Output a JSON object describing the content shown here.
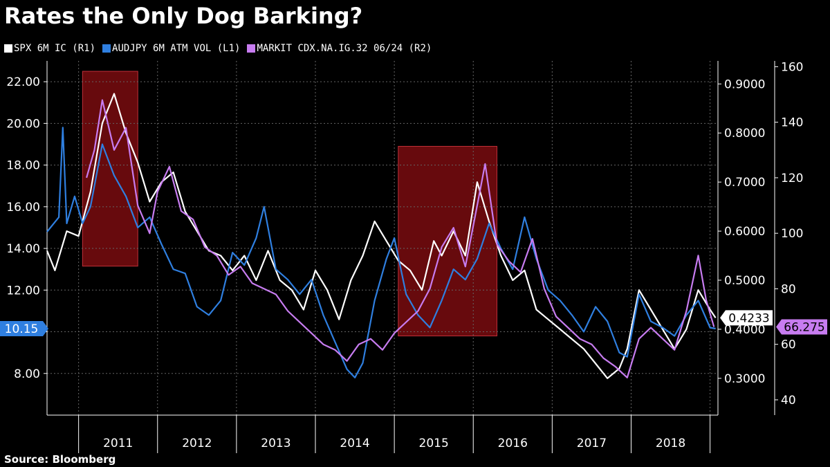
{
  "title": "Rates the Only Dog Barking?",
  "source": "Source:  Bloomberg",
  "colors": {
    "background": "#000000",
    "spx": "#ffffff",
    "audjpy": "#2f7fe0",
    "cdx": "#c77cf0",
    "highlight_fill": "#8a0d12",
    "highlight_stroke": "#c0303a",
    "grid": "#666666"
  },
  "legend": [
    {
      "label": "SPX 6M IC  (R1)",
      "color": "#ffffff"
    },
    {
      "label": "AUDJPY 6M ATM VOL  (L1)",
      "color": "#2f7fe0"
    },
    {
      "label": "MARKIT CDX.NA.IG.32 06/24  (R2)",
      "color": "#c77cf0"
    }
  ],
  "chart_data": {
    "type": "line",
    "title": "Rates the Only Dog Barking?",
    "x_range": [
      2010.6,
      2019.1
    ],
    "x_tick_labels": [
      "2011",
      "2012",
      "2013",
      "2014",
      "2015",
      "2016",
      "2017",
      "2018"
    ],
    "axes": {
      "left": {
        "name": "L1",
        "range": [
          6.0,
          23.0
        ],
        "ticks": [
          "8.00",
          "10.00",
          "12.00",
          "14.00",
          "16.00",
          "18.00",
          "20.00",
          "22.00"
        ]
      },
      "right1": {
        "name": "R1",
        "range": [
          0.225,
          0.947
        ],
        "ticks": [
          "0.3000",
          "0.4000",
          "0.5000",
          "0.6000",
          "0.7000",
          "0.8000",
          "0.9000"
        ]
      },
      "right2": {
        "name": "R2",
        "range": [
          34.5,
          162.1
        ],
        "ticks": [
          "40",
          "60",
          "80",
          "100",
          "120",
          "140",
          "160"
        ]
      }
    },
    "series": [
      {
        "name": "SPX 6M IC",
        "axis": "right1",
        "color": "#ffffff",
        "last_value_label": "0.4233",
        "points": [
          [
            2010.6,
            0.56
          ],
          [
            2010.7,
            0.52
          ],
          [
            2010.85,
            0.6
          ],
          [
            2011.0,
            0.59
          ],
          [
            2011.15,
            0.68
          ],
          [
            2011.3,
            0.82
          ],
          [
            2011.45,
            0.88
          ],
          [
            2011.6,
            0.8
          ],
          [
            2011.75,
            0.74
          ],
          [
            2011.9,
            0.66
          ],
          [
            2012.05,
            0.7
          ],
          [
            2012.2,
            0.72
          ],
          [
            2012.35,
            0.64
          ],
          [
            2012.5,
            0.6
          ],
          [
            2012.65,
            0.56
          ],
          [
            2012.8,
            0.55
          ],
          [
            2012.95,
            0.52
          ],
          [
            2013.1,
            0.55
          ],
          [
            2013.25,
            0.5
          ],
          [
            2013.4,
            0.56
          ],
          [
            2013.55,
            0.5
          ],
          [
            2013.7,
            0.48
          ],
          [
            2013.85,
            0.44
          ],
          [
            2014.0,
            0.52
          ],
          [
            2014.15,
            0.48
          ],
          [
            2014.3,
            0.42
          ],
          [
            2014.45,
            0.5
          ],
          [
            2014.6,
            0.55
          ],
          [
            2014.75,
            0.62
          ],
          [
            2014.9,
            0.58
          ],
          [
            2015.05,
            0.54
          ],
          [
            2015.2,
            0.52
          ],
          [
            2015.35,
            0.48
          ],
          [
            2015.5,
            0.58
          ],
          [
            2015.6,
            0.55
          ],
          [
            2015.75,
            0.6
          ],
          [
            2015.9,
            0.55
          ],
          [
            2016.05,
            0.7
          ],
          [
            2016.2,
            0.62
          ],
          [
            2016.35,
            0.55
          ],
          [
            2016.5,
            0.5
          ],
          [
            2016.65,
            0.52
          ],
          [
            2016.8,
            0.44
          ],
          [
            2016.95,
            0.42
          ],
          [
            2017.1,
            0.4
          ],
          [
            2017.25,
            0.38
          ],
          [
            2017.4,
            0.36
          ],
          [
            2017.55,
            0.33
          ],
          [
            2017.7,
            0.3
          ],
          [
            2017.85,
            0.32
          ],
          [
            2017.95,
            0.36
          ],
          [
            2018.1,
            0.48
          ],
          [
            2018.25,
            0.44
          ],
          [
            2018.4,
            0.4
          ],
          [
            2018.55,
            0.36
          ],
          [
            2018.7,
            0.4
          ],
          [
            2018.85,
            0.48
          ],
          [
            2019.0,
            0.44
          ],
          [
            2019.07,
            0.4233
          ]
        ]
      },
      {
        "name": "AUDJPY 6M ATM VOL",
        "axis": "left",
        "color": "#2f7fe0",
        "last_value_label": "10.15",
        "points": [
          [
            2010.6,
            14.8
          ],
          [
            2010.75,
            15.5
          ],
          [
            2010.8,
            19.8
          ],
          [
            2010.85,
            15.2
          ],
          [
            2010.95,
            16.5
          ],
          [
            2011.05,
            15.2
          ],
          [
            2011.15,
            16.0
          ],
          [
            2011.3,
            19.0
          ],
          [
            2011.45,
            17.5
          ],
          [
            2011.6,
            16.5
          ],
          [
            2011.75,
            15.0
          ],
          [
            2011.9,
            15.5
          ],
          [
            2012.05,
            14.2
          ],
          [
            2012.2,
            13.0
          ],
          [
            2012.35,
            12.8
          ],
          [
            2012.5,
            11.2
          ],
          [
            2012.65,
            10.8
          ],
          [
            2012.8,
            11.5
          ],
          [
            2012.95,
            13.8
          ],
          [
            2013.1,
            13.2
          ],
          [
            2013.25,
            14.5
          ],
          [
            2013.35,
            16.0
          ],
          [
            2013.5,
            13.0
          ],
          [
            2013.65,
            12.5
          ],
          [
            2013.8,
            11.8
          ],
          [
            2013.95,
            12.5
          ],
          [
            2014.1,
            10.8
          ],
          [
            2014.25,
            9.5
          ],
          [
            2014.4,
            8.2
          ],
          [
            2014.5,
            7.8
          ],
          [
            2014.6,
            8.5
          ],
          [
            2014.75,
            11.5
          ],
          [
            2014.9,
            13.5
          ],
          [
            2015.0,
            14.5
          ],
          [
            2015.15,
            11.8
          ],
          [
            2015.3,
            10.8
          ],
          [
            2015.45,
            10.2
          ],
          [
            2015.6,
            11.5
          ],
          [
            2015.75,
            13.0
          ],
          [
            2015.9,
            12.5
          ],
          [
            2016.05,
            13.5
          ],
          [
            2016.2,
            15.2
          ],
          [
            2016.35,
            14.0
          ],
          [
            2016.5,
            13.0
          ],
          [
            2016.65,
            15.5
          ],
          [
            2016.8,
            13.5
          ],
          [
            2016.95,
            12.0
          ],
          [
            2017.1,
            11.5
          ],
          [
            2017.25,
            10.8
          ],
          [
            2017.4,
            10.0
          ],
          [
            2017.55,
            11.2
          ],
          [
            2017.7,
            10.5
          ],
          [
            2017.85,
            9.0
          ],
          [
            2017.95,
            8.8
          ],
          [
            2018.1,
            11.8
          ],
          [
            2018.25,
            10.5
          ],
          [
            2018.4,
            10.2
          ],
          [
            2018.55,
            9.8
          ],
          [
            2018.7,
            10.8
          ],
          [
            2018.85,
            11.5
          ],
          [
            2019.0,
            10.2
          ],
          [
            2019.07,
            10.15
          ]
        ]
      },
      {
        "name": "MARKIT CDX.NA.IG.32 06/24",
        "axis": "right2",
        "color": "#c77cf0",
        "last_value_label": "66.275",
        "points": [
          [
            2011.1,
            120
          ],
          [
            2011.2,
            130
          ],
          [
            2011.3,
            148
          ],
          [
            2011.45,
            130
          ],
          [
            2011.6,
            138
          ],
          [
            2011.75,
            110
          ],
          [
            2011.9,
            100
          ],
          [
            2012.0,
            115
          ],
          [
            2012.15,
            124
          ],
          [
            2012.3,
            108
          ],
          [
            2012.45,
            105
          ],
          [
            2012.6,
            95
          ],
          [
            2012.75,
            92
          ],
          [
            2012.9,
            85
          ],
          [
            2013.05,
            88
          ],
          [
            2013.2,
            82
          ],
          [
            2013.35,
            80
          ],
          [
            2013.5,
            78
          ],
          [
            2013.65,
            72
          ],
          [
            2013.8,
            68
          ],
          [
            2013.95,
            64
          ],
          [
            2014.1,
            60
          ],
          [
            2014.25,
            58
          ],
          [
            2014.4,
            54
          ],
          [
            2014.55,
            60
          ],
          [
            2014.7,
            62
          ],
          [
            2014.85,
            58
          ],
          [
            2015.0,
            64
          ],
          [
            2015.15,
            68
          ],
          [
            2015.3,
            72
          ],
          [
            2015.45,
            80
          ],
          [
            2015.6,
            95
          ],
          [
            2015.75,
            102
          ],
          [
            2015.9,
            88
          ],
          [
            2016.05,
            110
          ],
          [
            2016.15,
            125
          ],
          [
            2016.3,
            96
          ],
          [
            2016.45,
            90
          ],
          [
            2016.6,
            86
          ],
          [
            2016.75,
            98
          ],
          [
            2016.9,
            80
          ],
          [
            2017.05,
            70
          ],
          [
            2017.2,
            66
          ],
          [
            2017.35,
            62
          ],
          [
            2017.5,
            60
          ],
          [
            2017.65,
            55
          ],
          [
            2017.8,
            52
          ],
          [
            2017.95,
            48
          ],
          [
            2018.1,
            62
          ],
          [
            2018.25,
            66
          ],
          [
            2018.4,
            62
          ],
          [
            2018.55,
            58
          ],
          [
            2018.7,
            72
          ],
          [
            2018.85,
            92
          ],
          [
            2018.95,
            76
          ],
          [
            2019.05,
            66.275
          ]
        ]
      }
    ],
    "highlight_regions": [
      {
        "x_range": [
          2011.05,
          2011.75
        ],
        "left_range": [
          13.15,
          22.5
        ]
      },
      {
        "x_range": [
          2015.05,
          2016.3
        ],
        "left_range": [
          9.8,
          18.9
        ]
      }
    ],
    "grid": true
  }
}
